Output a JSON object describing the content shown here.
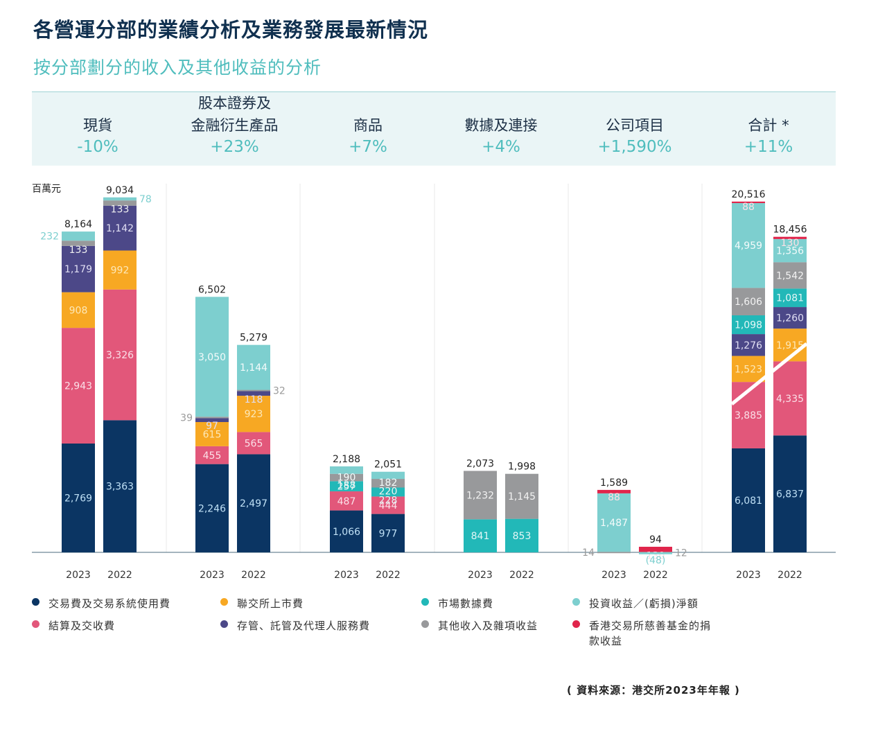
{
  "title": "各營運分部的業績分析及業務發展最新情況",
  "subtitle": "按分部劃分的收入及其他收益的分析",
  "header": [
    {
      "name_lines": [
        "",
        "現貨"
      ],
      "change": "-10%"
    },
    {
      "name_lines": [
        "股本證券及",
        "金融衍生產品"
      ],
      "change": "+23%"
    },
    {
      "name_lines": [
        "",
        "商品"
      ],
      "change": "+7%"
    },
    {
      "name_lines": [
        "",
        "數據及連接"
      ],
      "change": "+4%"
    },
    {
      "name_lines": [
        "",
        "公司項目"
      ],
      "change": "+1,590%"
    },
    {
      "name_lines": [
        "",
        "合計 *"
      ],
      "change": "+11%"
    }
  ],
  "source": "( 資料來源：港交所2023年年報 )",
  "chart_data": {
    "type": "bar",
    "stacked": true,
    "unit_label": "百萬元",
    "title": "按分部劃分的收入及其他收益的分析",
    "xlabel": "",
    "ylabel": "百萬元",
    "legend_position": "bottom",
    "series_defs": [
      {
        "key": "trading",
        "name": "交易費及交易系統使用費",
        "color": "#0b3563"
      },
      {
        "key": "clearing",
        "name": "結算及交收費",
        "color": "#e2577a"
      },
      {
        "key": "listing",
        "name": "聯交所上市費",
        "color": "#f7a823"
      },
      {
        "key": "depository",
        "name": "存管、託管及代理人服務費",
        "color": "#4c4888"
      },
      {
        "key": "market_data",
        "name": "市場數據費",
        "color": "#22b8b8"
      },
      {
        "key": "other",
        "name": "其他收入及雜項收益",
        "color": "#98999b"
      },
      {
        "key": "investment",
        "name": "投資收益／(虧損)淨額",
        "color": "#7dcfcf"
      },
      {
        "key": "donation",
        "name": "香港交易所慈善基金的捐款收益",
        "color": "#e0254b"
      }
    ],
    "legend_order": [
      "trading",
      "listing",
      "market_data",
      "investment",
      "clearing",
      "depository",
      "other",
      "donation"
    ],
    "panels": [
      {
        "segment": "現貨",
        "bars": [
          {
            "year": "2023",
            "total": "8,164",
            "segments": [
              {
                "key": "trading",
                "value": 2769,
                "label": "2,769"
              },
              {
                "key": "clearing",
                "value": 2943,
                "label": "2,943"
              },
              {
                "key": "listing",
                "value": 908,
                "label": "908"
              },
              {
                "key": "depository",
                "value": 1179,
                "label": "1,179"
              },
              {
                "key": "other",
                "value": 133,
                "label": "133"
              },
              {
                "key": "investment",
                "value": 232,
                "label": "232",
                "outside": "left"
              }
            ]
          },
          {
            "year": "2022",
            "total": "9,034",
            "segments": [
              {
                "key": "trading",
                "value": 3363,
                "label": "3,363"
              },
              {
                "key": "clearing",
                "value": 3326,
                "label": "3,326"
              },
              {
                "key": "listing",
                "value": 992,
                "label": "992"
              },
              {
                "key": "depository",
                "value": 1142,
                "label": "1,142"
              },
              {
                "key": "other",
                "value": 133,
                "label": "133"
              },
              {
                "key": "investment",
                "value": 78,
                "label": "78",
                "outside": "right"
              }
            ]
          }
        ]
      },
      {
        "segment": "股本證券及金融衍生產品",
        "bars": [
          {
            "year": "2023",
            "total": "6,502",
            "segments": [
              {
                "key": "trading",
                "value": 2246,
                "label": "2,246"
              },
              {
                "key": "clearing",
                "value": 455,
                "label": "455"
              },
              {
                "key": "listing",
                "value": 615,
                "label": "615"
              },
              {
                "key": "depository",
                "value": 97,
                "label": "97"
              },
              {
                "key": "other",
                "value": 39,
                "label": "39",
                "outside": "left"
              },
              {
                "key": "investment",
                "value": 3050,
                "label": "3,050"
              }
            ]
          },
          {
            "year": "2022",
            "total": "5,279",
            "segments": [
              {
                "key": "trading",
                "value": 2497,
                "label": "2,497"
              },
              {
                "key": "clearing",
                "value": 565,
                "label": "565"
              },
              {
                "key": "listing",
                "value": 923,
                "label": "923"
              },
              {
                "key": "depository",
                "value": 118,
                "label": "118"
              },
              {
                "key": "other",
                "value": 32,
                "label": "32",
                "outside": "right"
              },
              {
                "key": "investment",
                "value": 1144,
                "label": "1,144"
              }
            ]
          }
        ]
      },
      {
        "segment": "商品",
        "bars": [
          {
            "year": "2023",
            "total": "2,188",
            "segments": [
              {
                "key": "trading",
                "value": 1066,
                "label": "1,066"
              },
              {
                "key": "clearing",
                "value": 487,
                "label": "487"
              },
              {
                "key": "market_data",
                "value": 257,
                "label": "257"
              },
              {
                "key": "other",
                "value": 188,
                "label": "188"
              },
              {
                "key": "investment",
                "value": 190,
                "label": "190"
              }
            ]
          },
          {
            "year": "2022",
            "total": "2,051",
            "segments": [
              {
                "key": "trading",
                "value": 977,
                "label": "977"
              },
              {
                "key": "clearing",
                "value": 444,
                "label": "444"
              },
              {
                "key": "market_data",
                "value": 228,
                "label": "228"
              },
              {
                "key": "other",
                "value": 220,
                "label": "220"
              },
              {
                "key": "investment",
                "value": 182,
                "label": "182"
              }
            ]
          }
        ]
      },
      {
        "segment": "數據及連接",
        "bars": [
          {
            "year": "2023",
            "total": "2,073",
            "segments": [
              {
                "key": "market_data",
                "value": 841,
                "label": "841"
              },
              {
                "key": "other",
                "value": 1232,
                "label": "1,232"
              }
            ]
          },
          {
            "year": "2022",
            "total": "1,998",
            "segments": [
              {
                "key": "market_data",
                "value": 853,
                "label": "853"
              },
              {
                "key": "other",
                "value": 1145,
                "label": "1,145"
              }
            ]
          }
        ]
      },
      {
        "segment": "公司項目",
        "bars": [
          {
            "year": "2023",
            "total": "1,589",
            "segments": [
              {
                "key": "other",
                "value": 14,
                "label": "14",
                "outside": "left"
              },
              {
                "key": "investment",
                "value": 1487,
                "label": "1,487"
              },
              {
                "key": "donation",
                "value": 88,
                "label": "88"
              }
            ]
          },
          {
            "year": "2022",
            "total": "94",
            "segments": [
              {
                "key": "other",
                "value": 12,
                "label": "12",
                "outside": "right"
              },
              {
                "key": "donation",
                "value": 130,
                "label": "130"
              },
              {
                "key": "investment",
                "value": -48,
                "label": "(48)",
                "outside": "below"
              }
            ]
          }
        ]
      },
      {
        "segment": "合計 *",
        "bars": [
          {
            "year": "2023",
            "total": "20,516",
            "segments": [
              {
                "key": "trading",
                "value": 6081,
                "label": "6,081"
              },
              {
                "key": "clearing",
                "value": 3885,
                "label": "3,885"
              },
              {
                "key": "listing",
                "value": 1523,
                "label": "1,523"
              },
              {
                "key": "depository",
                "value": 1276,
                "label": "1,276"
              },
              {
                "key": "market_data",
                "value": 1098,
                "label": "1,098"
              },
              {
                "key": "other",
                "value": 1606,
                "label": "1,606"
              },
              {
                "key": "investment",
                "value": 4959,
                "label": "4,959"
              },
              {
                "key": "donation",
                "value": 88,
                "label": "88"
              }
            ]
          },
          {
            "year": "2022",
            "total": "18,456",
            "segments": [
              {
                "key": "trading",
                "value": 6837,
                "label": "6,837"
              },
              {
                "key": "clearing",
                "value": 4335,
                "label": "4,335"
              },
              {
                "key": "listing",
                "value": 1915,
                "label": "1,915"
              },
              {
                "key": "depository",
                "value": 1260,
                "label": "1,260"
              },
              {
                "key": "market_data",
                "value": 1081,
                "label": "1,081"
              },
              {
                "key": "other",
                "value": 1542,
                "label": "1,542"
              },
              {
                "key": "investment",
                "value": 1356,
                "label": "1,356"
              },
              {
                "key": "donation",
                "value": 130,
                "label": "130"
              }
            ]
          }
        ]
      }
    ]
  }
}
